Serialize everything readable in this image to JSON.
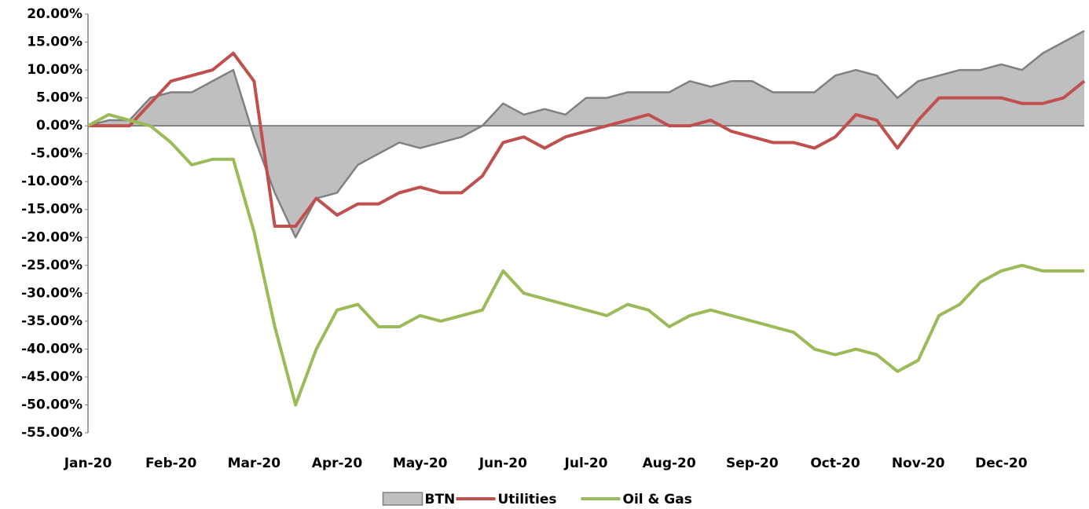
{
  "chart_data": {
    "type": "line",
    "categories": [
      "Jan-20",
      null,
      null,
      null,
      "Feb-20",
      null,
      null,
      null,
      "Mar-20",
      null,
      null,
      null,
      "Apr-20",
      null,
      null,
      null,
      "May-20",
      null,
      null,
      null,
      "Jun-20",
      null,
      null,
      null,
      "Jul-20",
      null,
      null,
      null,
      "Aug-20",
      null,
      null,
      null,
      "Sep-20",
      null,
      null,
      null,
      "Oct-20",
      null,
      null,
      null,
      "Nov-20",
      null,
      null,
      null,
      "Dec-20",
      null,
      null,
      null,
      null
    ],
    "series": [
      {
        "name": "BTN",
        "color": "#808080",
        "fill": "#bfbfbf",
        "area": true,
        "values": [
          0,
          1,
          1,
          5,
          6,
          6,
          8,
          10,
          -2,
          -12,
          -20,
          -13,
          -12,
          -7,
          -5,
          -3,
          -4,
          -3,
          -2,
          0,
          4,
          2,
          3,
          2,
          5,
          5,
          6,
          6,
          6,
          8,
          7,
          8,
          8,
          6,
          6,
          6,
          9,
          10,
          9,
          5,
          8,
          9,
          10,
          10,
          11,
          10,
          13,
          15,
          17
        ]
      },
      {
        "name": "Utilities",
        "color": "#c0504d",
        "values": [
          0,
          0,
          0,
          4,
          8,
          9,
          10,
          13,
          8,
          -18,
          -18,
          -13,
          -16,
          -14,
          -14,
          -12,
          -11,
          -12,
          -12,
          -9,
          -3,
          -2,
          -4,
          -2,
          -1,
          0,
          1,
          2,
          0,
          0,
          1,
          -1,
          -2,
          -3,
          -3,
          -4,
          -2,
          2,
          1,
          -4,
          1,
          5,
          5,
          5,
          5,
          4,
          4,
          5,
          8
        ]
      },
      {
        "name": "Oil & Gas",
        "color": "#9bbb59",
        "values": [
          0,
          2,
          1,
          0,
          -3,
          -7,
          -6,
          -6,
          -19,
          -36,
          -50,
          -40,
          -33,
          -32,
          -36,
          -36,
          -34,
          -35,
          -34,
          -33,
          -26,
          -30,
          -31,
          -32,
          -33,
          -34,
          -32,
          -33,
          -36,
          -34,
          -33,
          -34,
          -35,
          -36,
          -37,
          -40,
          -41,
          -40,
          -41,
          -44,
          -42,
          -34,
          -32,
          -28,
          -26,
          -25,
          -26,
          -26,
          -26
        ]
      }
    ],
    "ylim": [
      -55,
      20
    ],
    "yticks": [
      {
        "value": 20,
        "label": "20.00%"
      },
      {
        "value": 15,
        "label": "15.00%"
      },
      {
        "value": 10,
        "label": "10.00%"
      },
      {
        "value": 5,
        "label": "5.00%"
      },
      {
        "value": 0,
        "label": "0.00%"
      },
      {
        "value": -5,
        "label": "-5.00%"
      },
      {
        "value": -10,
        "label": "-10.00%"
      },
      {
        "value": -15,
        "label": "-15.00%"
      },
      {
        "value": -20,
        "label": "-20.00%"
      },
      {
        "value": -25,
        "label": "-25.00%"
      },
      {
        "value": -30,
        "label": "-30.00%"
      },
      {
        "value": -35,
        "label": "-35.00%"
      },
      {
        "value": -40,
        "label": "-40.00%"
      },
      {
        "value": -45,
        "label": "-45.00%"
      },
      {
        "value": -50,
        "label": "-50.00%"
      },
      {
        "value": -55,
        "label": "-55.00%"
      }
    ],
    "grid": false,
    "legend": "bottom"
  }
}
